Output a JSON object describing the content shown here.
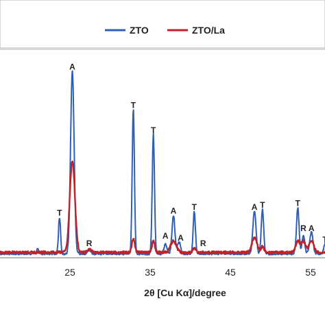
{
  "chart_data": {
    "type": "line",
    "xlabel": "2θ [Cu Kα]/degree",
    "ylabel": "",
    "xlim": [
      15,
      60
    ],
    "ylim": [
      0,
      100
    ],
    "x_ticks": [
      25,
      35,
      45,
      55
    ],
    "x_tick_labels": [
      "25",
      "35",
      "45",
      "55"
    ],
    "grid": false,
    "legend": {
      "position": "top-center",
      "entries": [
        "ZTO",
        "ZTO/La"
      ]
    },
    "series": [
      {
        "name": "ZTO",
        "color": "#2f5fb4",
        "baseline": 2.2,
        "peaks": [
          {
            "x": 21.0,
            "height": 2.5,
            "width": 0.12
          },
          {
            "x": 23.7,
            "height": 19,
            "width": 0.13
          },
          {
            "x": 25.3,
            "height": 95,
            "width": 0.22
          },
          {
            "x": 27.4,
            "height": 2,
            "width": 0.2
          },
          {
            "x": 32.9,
            "height": 75,
            "width": 0.14
          },
          {
            "x": 35.4,
            "height": 62,
            "width": 0.14
          },
          {
            "x": 36.9,
            "height": 5,
            "width": 0.18
          },
          {
            "x": 37.9,
            "height": 20,
            "width": 0.18
          },
          {
            "x": 38.6,
            "height": 6,
            "width": 0.2
          },
          {
            "x": 40.5,
            "height": 22,
            "width": 0.14
          },
          {
            "x": 48.0,
            "height": 22,
            "width": 0.2
          },
          {
            "x": 49.0,
            "height": 23,
            "width": 0.15
          },
          {
            "x": 53.4,
            "height": 24,
            "width": 0.16
          },
          {
            "x": 54.1,
            "height": 10,
            "width": 0.16
          },
          {
            "x": 55.1,
            "height": 11,
            "width": 0.2
          },
          {
            "x": 56.8,
            "height": 5,
            "width": 0.16
          }
        ]
      },
      {
        "name": "ZTO/La",
        "color": "#c0222b",
        "baseline": 2.8,
        "peaks": [
          {
            "x": 25.3,
            "height": 48,
            "width": 0.32
          },
          {
            "x": 27.4,
            "height": 1.5,
            "width": 0.25
          },
          {
            "x": 32.9,
            "height": 7,
            "width": 0.18
          },
          {
            "x": 35.4,
            "height": 6,
            "width": 0.18
          },
          {
            "x": 37.9,
            "height": 6,
            "width": 0.35
          },
          {
            "x": 40.5,
            "height": 2,
            "width": 0.2
          },
          {
            "x": 48.0,
            "height": 8,
            "width": 0.3
          },
          {
            "x": 49.0,
            "height": 3,
            "width": 0.2
          },
          {
            "x": 53.4,
            "height": 6,
            "width": 0.25
          },
          {
            "x": 54.1,
            "height": 6,
            "width": 0.25
          },
          {
            "x": 55.1,
            "height": 6,
            "width": 0.3
          }
        ]
      }
    ],
    "annotations": [
      {
        "text": "A",
        "x": 25.3,
        "y": 98
      },
      {
        "text": "T",
        "x": 23.7,
        "y": 22
      },
      {
        "text": "R",
        "x": 27.4,
        "y": 6
      },
      {
        "text": "T",
        "x": 32.9,
        "y": 78
      },
      {
        "text": "T",
        "x": 35.4,
        "y": 65
      },
      {
        "text": "A",
        "x": 36.9,
        "y": 10
      },
      {
        "text": "A",
        "x": 37.9,
        "y": 23
      },
      {
        "text": "A",
        "x": 38.8,
        "y": 9
      },
      {
        "text": "T",
        "x": 40.5,
        "y": 25
      },
      {
        "text": "R",
        "x": 41.6,
        "y": 6
      },
      {
        "text": "A",
        "x": 48.0,
        "y": 25
      },
      {
        "text": "T",
        "x": 49.0,
        "y": 26
      },
      {
        "text": "T",
        "x": 53.4,
        "y": 27
      },
      {
        "text": "R",
        "x": 54.1,
        "y": 14
      },
      {
        "text": "A",
        "x": 55.1,
        "y": 14
      },
      {
        "text": "T",
        "x": 56.8,
        "y": 8
      }
    ]
  }
}
